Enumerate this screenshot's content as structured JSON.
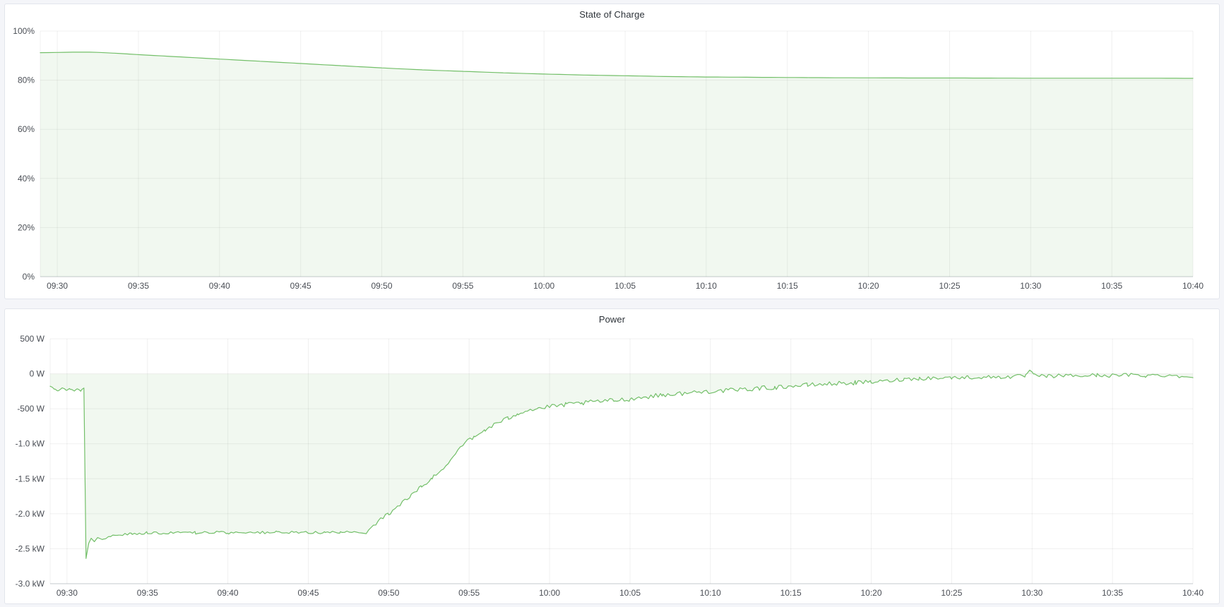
{
  "page": {
    "background_color": "#f4f5f9",
    "panel_background": "#ffffff",
    "panel_border_color": "#e2e5ec",
    "grid_color": "rgba(0,0,0,0.06)",
    "axis_line_color": "#c6c9ce",
    "label_color": "#4a4e55",
    "title_color": "#2c3238",
    "accent_green": "#73bf69"
  },
  "chart_data": [
    {
      "type": "area",
      "title": "State of Charge",
      "unit": "%",
      "legend": "none",
      "grid": true,
      "line_color": "#73bf69",
      "fill_color": "rgba(115,191,105,0.10)",
      "x_range_minutes": [
        -1.05,
        70
      ],
      "x_start_time": "09:30",
      "x_end_time": "10:40",
      "x_ticks": [
        {
          "m": 0,
          "label": "09:30"
        },
        {
          "m": 5,
          "label": "09:35"
        },
        {
          "m": 10,
          "label": "09:40"
        },
        {
          "m": 15,
          "label": "09:45"
        },
        {
          "m": 20,
          "label": "09:50"
        },
        {
          "m": 25,
          "label": "09:55"
        },
        {
          "m": 30,
          "label": "10:00"
        },
        {
          "m": 35,
          "label": "10:05"
        },
        {
          "m": 40,
          "label": "10:10"
        },
        {
          "m": 45,
          "label": "10:15"
        },
        {
          "m": 50,
          "label": "10:20"
        },
        {
          "m": 55,
          "label": "10:25"
        },
        {
          "m": 60,
          "label": "10:30"
        },
        {
          "m": 65,
          "label": "10:35"
        },
        {
          "m": 70,
          "label": "10:40"
        }
      ],
      "y_range": [
        0,
        100
      ],
      "y_ticks": [
        {
          "value": 0,
          "label": "0%"
        },
        {
          "value": 20,
          "label": "20%"
        },
        {
          "value": 40,
          "label": "40%"
        },
        {
          "value": 60,
          "label": "60%"
        },
        {
          "value": 80,
          "label": "80%"
        },
        {
          "value": 100,
          "label": "100%"
        }
      ],
      "noise_segments": [],
      "series": [
        {
          "name": "State of Charge",
          "points_minutes_percent": [
            [
              -1.05,
              91.2
            ],
            [
              0,
              91.3
            ],
            [
              1,
              91.4
            ],
            [
              2,
              91.4
            ],
            [
              2.6,
              91.3
            ],
            [
              3.5,
              91.0
            ],
            [
              5,
              90.4
            ],
            [
              7.5,
              89.5
            ],
            [
              10,
              88.6
            ],
            [
              12.5,
              87.7
            ],
            [
              15,
              86.8
            ],
            [
              17.5,
              85.9
            ],
            [
              20,
              85.0
            ],
            [
              22.5,
              84.2
            ],
            [
              25,
              83.6
            ],
            [
              27.5,
              83.0
            ],
            [
              30,
              82.5
            ],
            [
              32.5,
              82.1
            ],
            [
              35,
              81.8
            ],
            [
              37.5,
              81.5
            ],
            [
              40,
              81.3
            ],
            [
              42.5,
              81.2
            ],
            [
              45,
              81.1
            ],
            [
              47.5,
              81.0
            ],
            [
              50,
              80.95
            ],
            [
              52.5,
              80.9
            ],
            [
              55,
              80.9
            ],
            [
              57.5,
              80.85
            ],
            [
              60,
              80.8
            ],
            [
              62.5,
              80.8
            ],
            [
              65,
              80.8
            ],
            [
              67.5,
              80.8
            ],
            [
              70,
              80.75
            ]
          ]
        }
      ]
    },
    {
      "type": "area",
      "title": "Power",
      "unit": "W",
      "legend": "none",
      "grid": true,
      "line_color": "#73bf69",
      "fill_color": "rgba(115,191,105,0.10)",
      "x_range_minutes": [
        -1.05,
        70
      ],
      "x_start_time": "09:30",
      "x_end_time": "10:40",
      "x_ticks": [
        {
          "m": 0,
          "label": "09:30"
        },
        {
          "m": 5,
          "label": "09:35"
        },
        {
          "m": 10,
          "label": "09:40"
        },
        {
          "m": 15,
          "label": "09:45"
        },
        {
          "m": 20,
          "label": "09:50"
        },
        {
          "m": 25,
          "label": "09:55"
        },
        {
          "m": 30,
          "label": "10:00"
        },
        {
          "m": 35,
          "label": "10:05"
        },
        {
          "m": 40,
          "label": "10:10"
        },
        {
          "m": 45,
          "label": "10:15"
        },
        {
          "m": 50,
          "label": "10:20"
        },
        {
          "m": 55,
          "label": "10:25"
        },
        {
          "m": 60,
          "label": "10:30"
        },
        {
          "m": 65,
          "label": "10:35"
        },
        {
          "m": 70,
          "label": "10:40"
        }
      ],
      "y_range": [
        -3000,
        500
      ],
      "y_ticks": [
        {
          "value": 500,
          "label": "500 W"
        },
        {
          "value": 0,
          "label": "0 W"
        },
        {
          "value": -500,
          "label": "-500 W"
        },
        {
          "value": -1000,
          "label": "-1.0 kW"
        },
        {
          "value": -1500,
          "label": "-1.5 kW"
        },
        {
          "value": -2000,
          "label": "-2.0 kW"
        },
        {
          "value": -2500,
          "label": "-2.5 kW"
        },
        {
          "value": -3000,
          "label": "-3.0 kW"
        }
      ],
      "noise_segments": [
        [
          -1.05,
          1.05,
          10
        ],
        [
          2.3,
          18.6,
          20
        ],
        [
          19.2,
          50,
          32
        ],
        [
          50,
          69.5,
          28
        ]
      ],
      "series": [
        {
          "name": "Power",
          "points_minutes_watts": [
            [
              -1.05,
              -185
            ],
            [
              -0.8,
              -215
            ],
            [
              -0.55,
              -240
            ],
            [
              -0.3,
              -205
            ],
            [
              -0.05,
              -230
            ],
            [
              0.2,
              -215
            ],
            [
              0.45,
              -245
            ],
            [
              0.65,
              -220
            ],
            [
              0.85,
              -240
            ],
            [
              1.0,
              -215
            ],
            [
              1.05,
              -210
            ],
            [
              1.18,
              -2640
            ],
            [
              1.35,
              -2420
            ],
            [
              1.5,
              -2350
            ],
            [
              1.7,
              -2400
            ],
            [
              1.9,
              -2340
            ],
            [
              2.2,
              -2370
            ],
            [
              2.6,
              -2320
            ],
            [
              3.2,
              -2300
            ],
            [
              4,
              -2285
            ],
            [
              5,
              -2270
            ],
            [
              6,
              -2276
            ],
            [
              7,
              -2264
            ],
            [
              8,
              -2274
            ],
            [
              9,
              -2266
            ],
            [
              10,
              -2272
            ],
            [
              11,
              -2263
            ],
            [
              12,
              -2270
            ],
            [
              13,
              -2265
            ],
            [
              14,
              -2272
            ],
            [
              15,
              -2264
            ],
            [
              16,
              -2270
            ],
            [
              17,
              -2266
            ],
            [
              18,
              -2271
            ],
            [
              18.6,
              -2266
            ],
            [
              19.2,
              -2130
            ],
            [
              20,
              -2000
            ],
            [
              20.7,
              -1870
            ],
            [
              21.4,
              -1740
            ],
            [
              22,
              -1620
            ],
            [
              22.7,
              -1495
            ],
            [
              23.3,
              -1370
            ],
            [
              24,
              -1180
            ],
            [
              24.6,
              -1000
            ],
            [
              25.3,
              -915
            ],
            [
              26,
              -800
            ],
            [
              26.7,
              -710
            ],
            [
              27.4,
              -640
            ],
            [
              28,
              -565
            ],
            [
              28.6,
              -520
            ],
            [
              29.3,
              -495
            ],
            [
              30,
              -472
            ],
            [
              31,
              -442
            ],
            [
              32,
              -420
            ],
            [
              33,
              -396
            ],
            [
              34,
              -380
            ],
            [
              35,
              -360
            ],
            [
              36,
              -330
            ],
            [
              37,
              -302
            ],
            [
              38,
              -285
            ],
            [
              39,
              -266
            ],
            [
              40,
              -250
            ],
            [
              41,
              -240
            ],
            [
              42,
              -226
            ],
            [
              43,
              -206
            ],
            [
              44,
              -196
            ],
            [
              45,
              -176
            ],
            [
              46,
              -162
            ],
            [
              47,
              -150
            ],
            [
              48,
              -136
            ],
            [
              49,
              -128
            ],
            [
              50,
              -120
            ],
            [
              51,
              -104
            ],
            [
              52,
              -76
            ],
            [
              53,
              -66
            ],
            [
              54,
              -60
            ],
            [
              55,
              -56
            ],
            [
              56,
              -50
            ],
            [
              57,
              -50
            ],
            [
              58,
              -46
            ],
            [
              59,
              -40
            ],
            [
              59.6,
              -30
            ],
            [
              59.85,
              55
            ],
            [
              60.1,
              -26
            ],
            [
              61,
              -36
            ],
            [
              62,
              -26
            ],
            [
              63,
              -30
            ],
            [
              64,
              -20
            ],
            [
              65,
              -26
            ],
            [
              66,
              -16
            ],
            [
              67,
              -26
            ],
            [
              68,
              -20
            ],
            [
              69,
              -26
            ],
            [
              70,
              -55
            ]
          ]
        }
      ]
    }
  ]
}
